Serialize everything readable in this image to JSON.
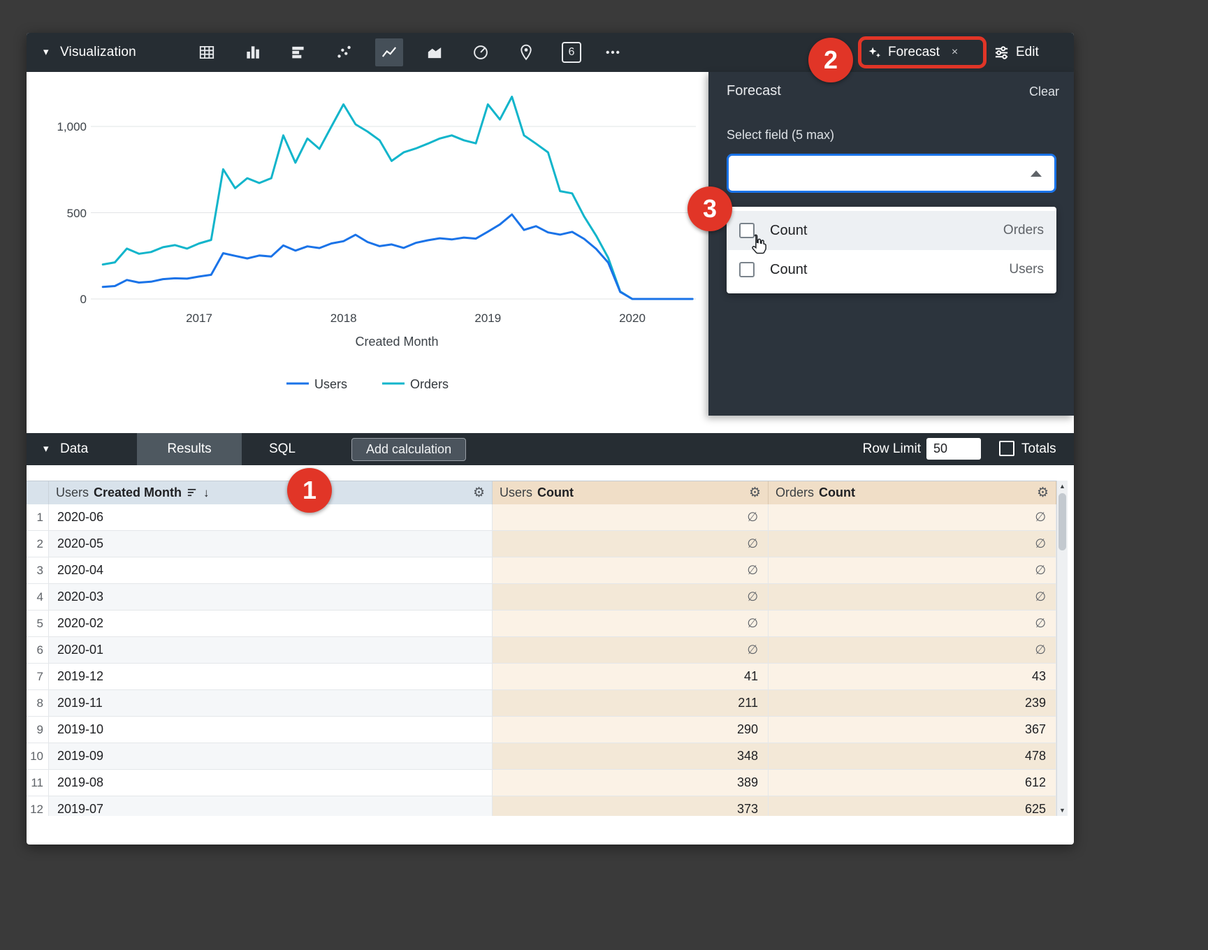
{
  "toolbar": {
    "title": "Visualization",
    "viz_types": [
      "table",
      "column",
      "bar",
      "scatter",
      "line",
      "area",
      "pie",
      "map",
      "single-value",
      "more"
    ],
    "selected_viz": "line",
    "single_value_icon_label": "6",
    "forecast_button": {
      "label": "Forecast"
    },
    "edit_button": {
      "label": "Edit"
    }
  },
  "forecast_panel": {
    "title": "Forecast",
    "clear_label": "Clear",
    "select_label": "Select field (5 max)",
    "select_value": "",
    "options": [
      {
        "label": "Count",
        "view": "Orders",
        "checked": false
      },
      {
        "label": "Count",
        "view": "Users",
        "checked": false
      }
    ]
  },
  "chart_data": {
    "type": "line",
    "xlabel": "Created Month",
    "ylabel": "",
    "x_ticks": [
      "2017",
      "2018",
      "2019",
      "2020"
    ],
    "y_ticks": [
      "0",
      "500",
      "1,000"
    ],
    "ylim": [
      0,
      1200
    ],
    "grid": true,
    "legend_position": "bottom",
    "note": "null values (2020-01..2020-06) are plotted as 0",
    "x": [
      "2016-05",
      "2016-06",
      "2016-07",
      "2016-08",
      "2016-09",
      "2016-10",
      "2016-11",
      "2016-12",
      "2017-01",
      "2017-02",
      "2017-03",
      "2017-04",
      "2017-05",
      "2017-06",
      "2017-07",
      "2017-08",
      "2017-09",
      "2017-10",
      "2017-11",
      "2017-12",
      "2018-01",
      "2018-02",
      "2018-03",
      "2018-04",
      "2018-05",
      "2018-06",
      "2018-07",
      "2018-08",
      "2018-09",
      "2018-10",
      "2018-11",
      "2018-12",
      "2019-01",
      "2019-02",
      "2019-03",
      "2019-04",
      "2019-05",
      "2019-06",
      "2019-07",
      "2019-08",
      "2019-09",
      "2019-10",
      "2019-11",
      "2019-12",
      "2020-01",
      "2020-02",
      "2020-03",
      "2020-04",
      "2020-05",
      "2020-06"
    ],
    "series": [
      {
        "name": "Users",
        "color": "#1a73e8",
        "values": [
          70,
          75,
          110,
          95,
          100,
          115,
          120,
          118,
          130,
          140,
          265,
          250,
          235,
          252,
          246,
          310,
          280,
          305,
          295,
          322,
          335,
          372,
          330,
          306,
          316,
          296,
          325,
          340,
          352,
          345,
          356,
          350,
          390,
          432,
          490,
          400,
          422,
          386,
          373,
          389,
          348,
          290,
          211,
          41,
          null,
          null,
          null,
          null,
          null,
          null
        ]
      },
      {
        "name": "Orders",
        "color": "#12b5cb",
        "values": [
          200,
          212,
          292,
          262,
          272,
          300,
          312,
          292,
          322,
          342,
          752,
          642,
          700,
          672,
          700,
          948,
          790,
          930,
          870,
          1000,
          1128,
          1012,
          970,
          920,
          800,
          850,
          872,
          900,
          930,
          948,
          920,
          902,
          1128,
          1040,
          1172,
          948,
          900,
          850,
          625,
          612,
          478,
          367,
          239,
          43,
          null,
          null,
          null,
          null,
          null,
          null
        ]
      }
    ]
  },
  "data_bar": {
    "title": "Data",
    "tabs": [
      "Results",
      "SQL"
    ],
    "active_tab": "Results",
    "add_calculation_label": "Add calculation",
    "row_limit_label": "Row Limit",
    "row_limit_value": "50",
    "totals_label": "Totals",
    "totals_checked": false
  },
  "table": {
    "columns": [
      {
        "view": "Users",
        "field": "Created Month",
        "sort": "desc"
      },
      {
        "view": "Users",
        "field": "Count"
      },
      {
        "view": "Orders",
        "field": "Count"
      }
    ],
    "rows": [
      {
        "n": "1",
        "month": "2020-06",
        "users": "∅",
        "orders": "∅"
      },
      {
        "n": "2",
        "month": "2020-05",
        "users": "∅",
        "orders": "∅"
      },
      {
        "n": "3",
        "month": "2020-04",
        "users": "∅",
        "orders": "∅"
      },
      {
        "n": "4",
        "month": "2020-03",
        "users": "∅",
        "orders": "∅"
      },
      {
        "n": "5",
        "month": "2020-02",
        "users": "∅",
        "orders": "∅"
      },
      {
        "n": "6",
        "month": "2020-01",
        "users": "∅",
        "orders": "∅"
      },
      {
        "n": "7",
        "month": "2019-12",
        "users": "41",
        "orders": "43"
      },
      {
        "n": "8",
        "month": "2019-11",
        "users": "211",
        "orders": "239"
      },
      {
        "n": "9",
        "month": "2019-10",
        "users": "290",
        "orders": "367"
      },
      {
        "n": "10",
        "month": "2019-09",
        "users": "348",
        "orders": "478"
      },
      {
        "n": "11",
        "month": "2019-08",
        "users": "389",
        "orders": "612"
      },
      {
        "n": "12",
        "month": "2019-07",
        "users": "373",
        "orders": "625"
      }
    ]
  },
  "annotations": {
    "badges": [
      "1",
      "2",
      "3"
    ],
    "highlight_color": "#e13527"
  },
  "icons": {
    "chevron_down": "▾",
    "close": "×",
    "more": "•••",
    "gear": "⚙",
    "sort_arrow_down": "↓",
    "scroll_up": "▲",
    "scroll_down": "▼"
  },
  "colors": {
    "users_series": "#1a73e8",
    "orders_series": "#12b5cb",
    "focus_border": "#1a73e8",
    "annotation": "#e13527"
  }
}
